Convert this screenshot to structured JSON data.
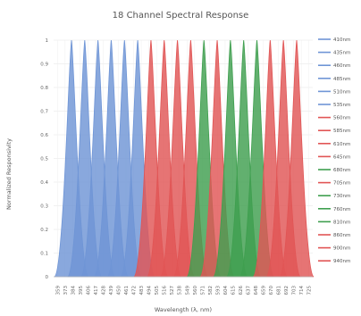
{
  "chart_data": {
    "type": "area",
    "title": "18 Channel Spectral Response",
    "xlabel": "Wavelength (λ, nm)",
    "ylabel": "Normalized Responsivity",
    "ylim": [
      0,
      1
    ],
    "yticks": [
      "0",
      "0.1",
      "0.2",
      "0.3",
      "0.4",
      "0.5",
      "0.6",
      "0.7",
      "0.8",
      "0.9",
      "1"
    ],
    "xticks": [
      "359",
      "373",
      "384",
      "395",
      "406",
      "417",
      "428",
      "439",
      "450",
      "461",
      "472",
      "483",
      "494",
      "505",
      "516",
      "527",
      "538",
      "549",
      "560",
      "571",
      "582",
      "593",
      "604",
      "615",
      "626",
      "637",
      "648",
      "659",
      "670",
      "681",
      "692",
      "703",
      "714",
      "725"
    ],
    "xlim": [
      359,
      725
    ],
    "grid": true,
    "legend_position": "right",
    "colors": {
      "blue": "#6f95d6",
      "red": "#e15555",
      "green": "#3f9f4f"
    },
    "series": [
      {
        "name": "410nm",
        "peak": 410,
        "color": "blue"
      },
      {
        "name": "435nm",
        "peak": 435,
        "color": "blue"
      },
      {
        "name": "460nm",
        "peak": 460,
        "color": "blue"
      },
      {
        "name": "485nm",
        "peak": 485,
        "color": "blue"
      },
      {
        "name": "510nm",
        "peak": 510,
        "color": "blue"
      },
      {
        "name": "535nm",
        "peak": 535,
        "color": "blue"
      },
      {
        "name": "560nm",
        "peak": 560,
        "color": "red"
      },
      {
        "name": "585nm",
        "peak": 585,
        "color": "red"
      },
      {
        "name": "610nm",
        "peak": 610,
        "color": "red"
      },
      {
        "name": "645nm",
        "peak": 645,
        "color": "red"
      },
      {
        "name": "680nm",
        "peak": 680,
        "color": "green"
      },
      {
        "name": "705nm",
        "peak": 705,
        "color": "red"
      },
      {
        "name": "730nm",
        "peak": 730,
        "color": "green"
      },
      {
        "name": "760nm",
        "peak": 760,
        "color": "green"
      },
      {
        "name": "810nm",
        "peak": 810,
        "color": "green"
      },
      {
        "name": "860nm",
        "peak": 860,
        "color": "red"
      },
      {
        "name": "900nm",
        "peak": 900,
        "color": "red"
      },
      {
        "name": "940nm",
        "peak": 940,
        "color": "red"
      }
    ],
    "peak_value": 1.0
  }
}
